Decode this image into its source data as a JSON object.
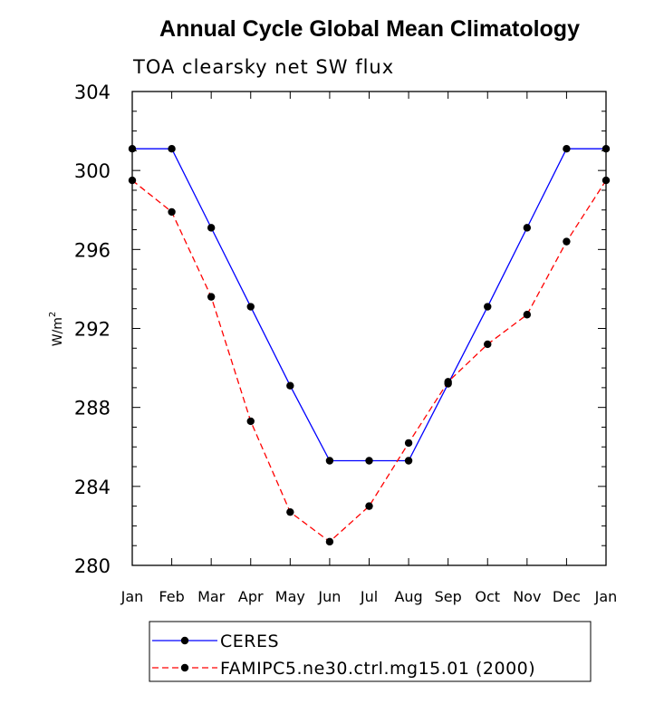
{
  "chart_data": {
    "type": "line",
    "title": "Annual Cycle Global Mean Climatology",
    "subtitle": "TOA clearsky net SW flux",
    "ylabel": "W/m",
    "ylabel_superscript": "2",
    "xlabel": "",
    "categories": [
      "Jan",
      "Feb",
      "Mar",
      "Apr",
      "May",
      "Jun",
      "Jul",
      "Aug",
      "Sep",
      "Oct",
      "Nov",
      "Dec",
      "Jan"
    ],
    "ylim": [
      280,
      304
    ],
    "yticks": [
      280,
      284,
      288,
      292,
      296,
      300,
      304
    ],
    "yminor_step": 1,
    "grid": false,
    "legend_position": "bottom",
    "series": [
      {
        "name": "CERES",
        "color": "#0000ff",
        "line_style": "solid",
        "marker": "filled-circle",
        "values": [
          301.1,
          301.1,
          297.1,
          293.1,
          289.1,
          285.3,
          285.3,
          285.3,
          289.2,
          293.1,
          297.1,
          301.1,
          301.1
        ]
      },
      {
        "name": "FAMIPC5.ne30.ctrl.mg15.01 (2000)",
        "color": "#ff0000",
        "line_style": "dashed",
        "marker": "filled-circle",
        "values": [
          299.5,
          297.9,
          293.6,
          287.3,
          282.7,
          281.2,
          283.0,
          286.2,
          289.3,
          291.2,
          292.7,
          296.4,
          299.5
        ]
      }
    ]
  }
}
